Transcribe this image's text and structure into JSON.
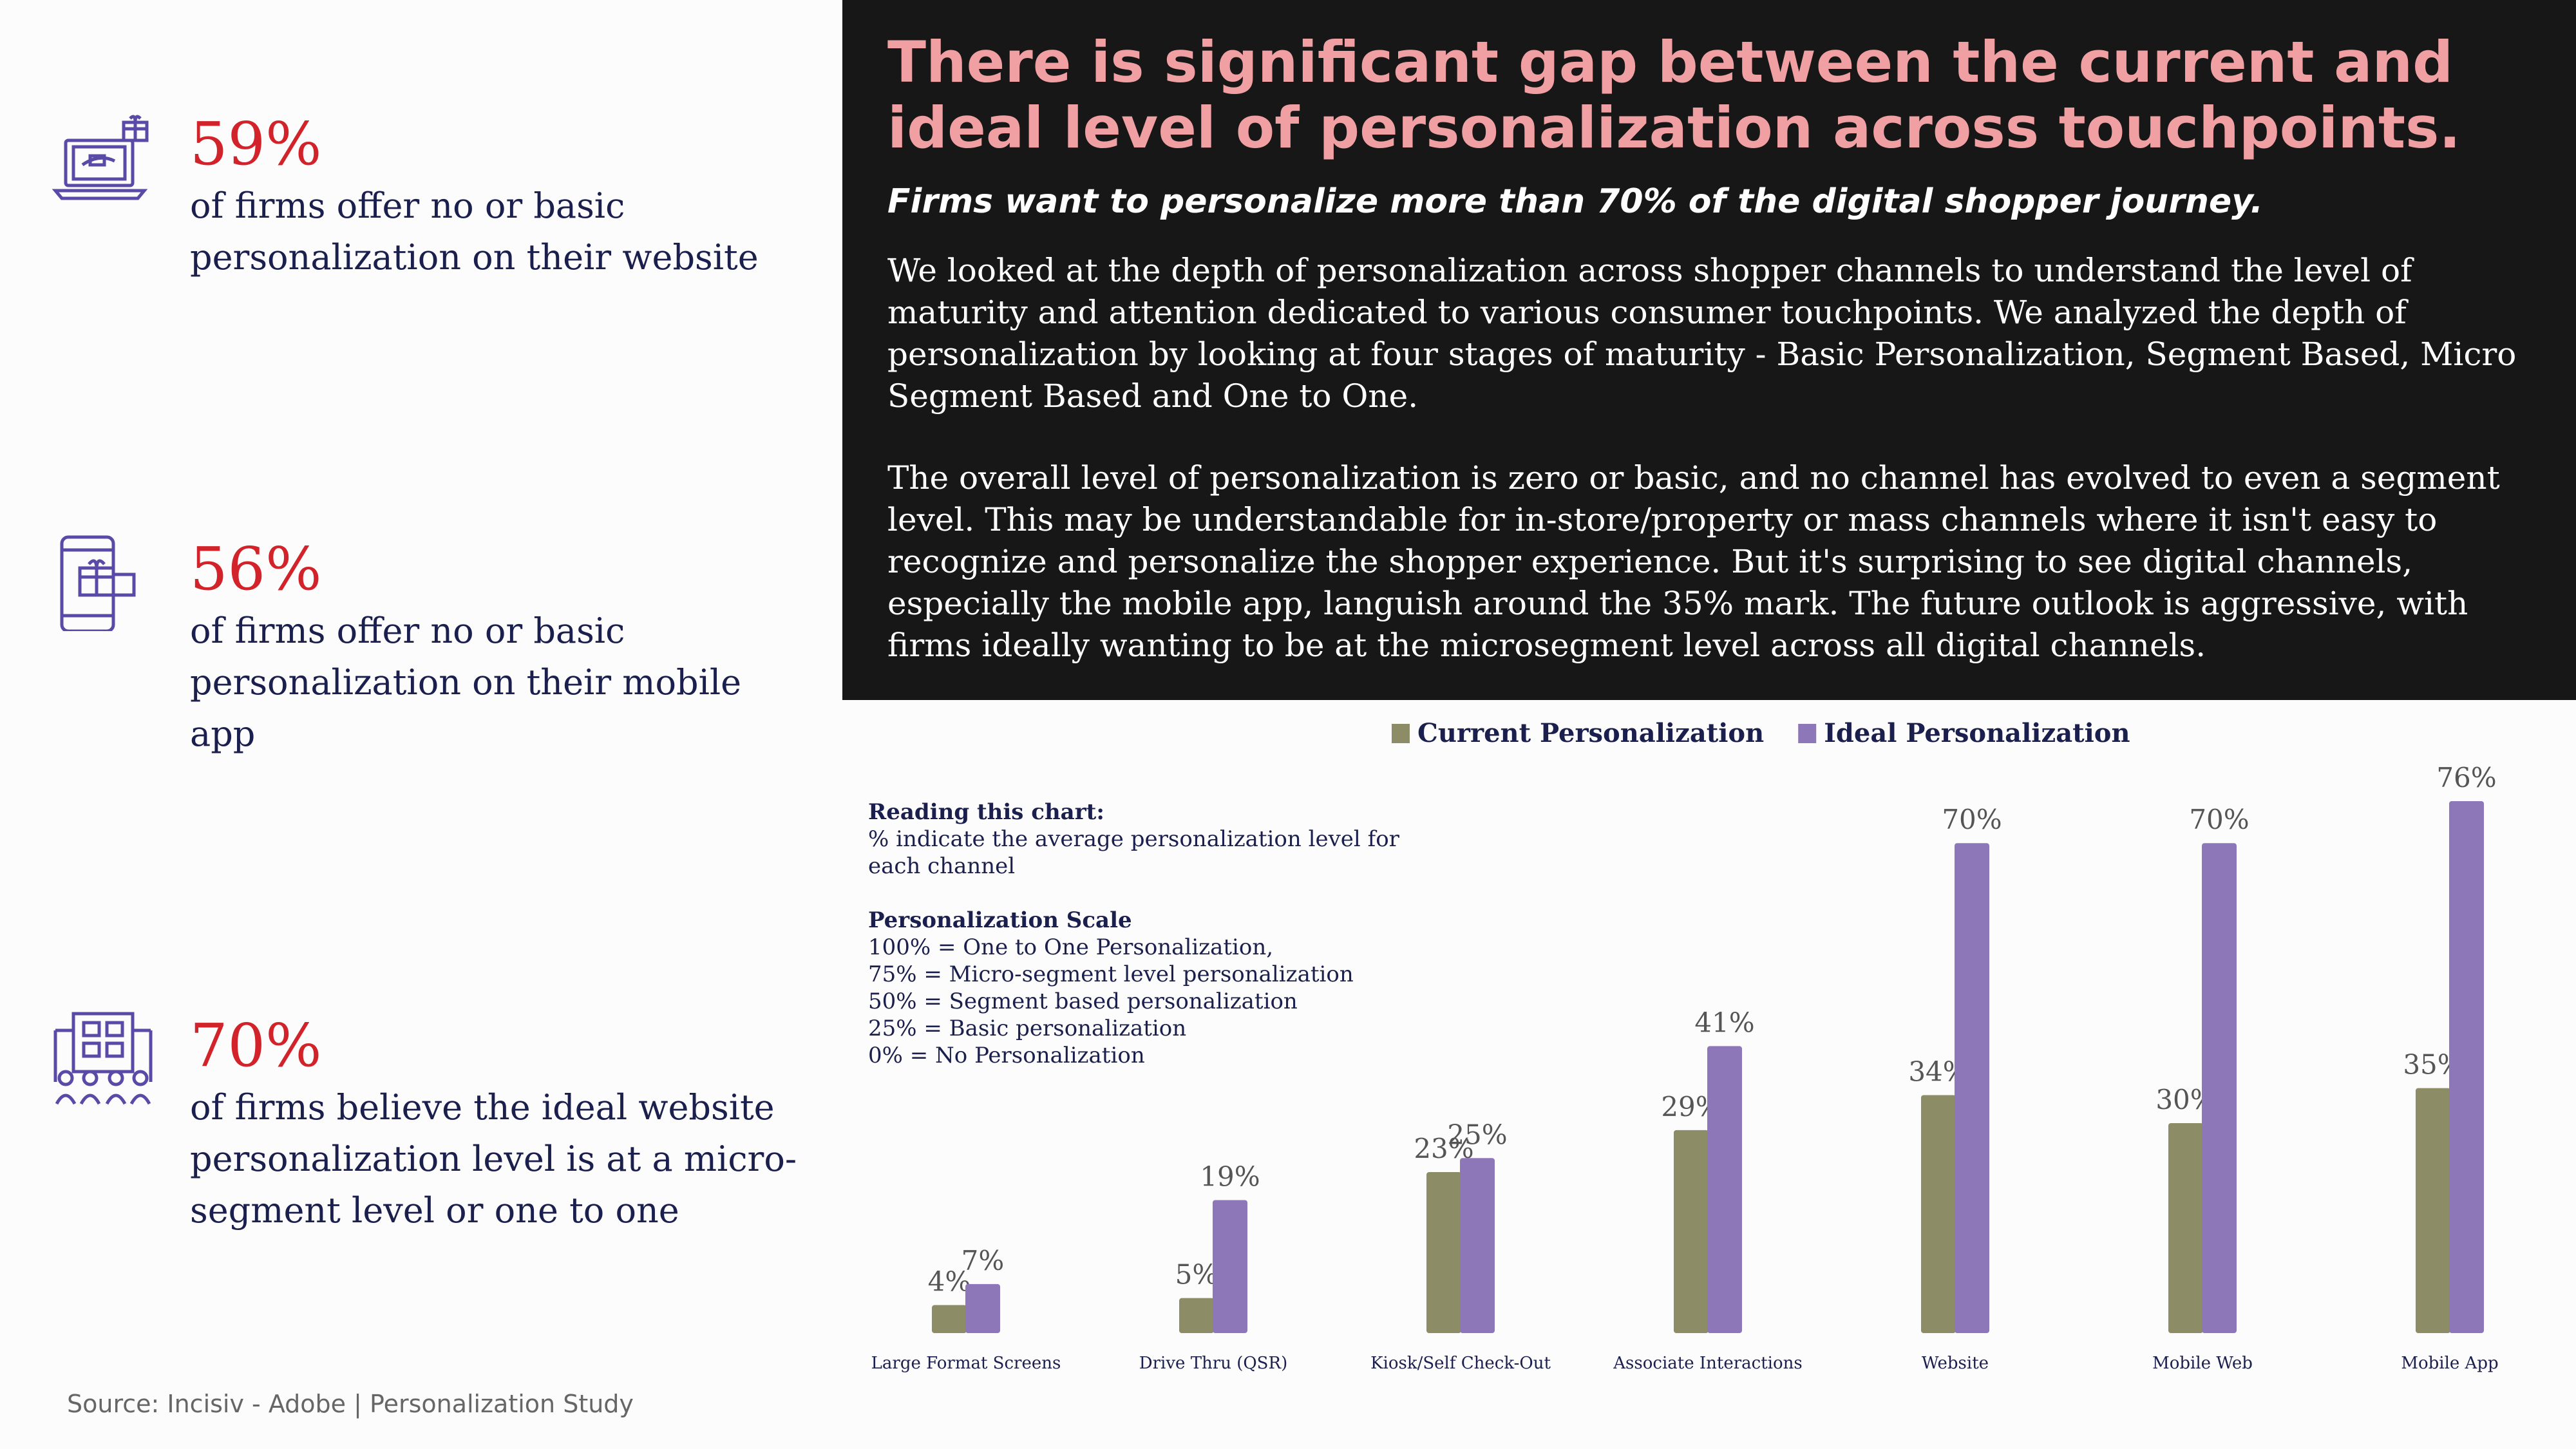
{
  "stats": [
    {
      "percent": "59%",
      "text": "of firms offer no or basic personalization on their website",
      "icon": "laptop-gift-icon"
    },
    {
      "percent": "56%",
      "text": "of firms offer no or basic personalization on their mobile app",
      "icon": "mobile-gift-icon"
    },
    {
      "percent": "70%",
      "text": "of firms believe the ideal website personalization level is at a micro-segment level or one to one",
      "icon": "store-people-icon"
    }
  ],
  "source": "Source: Incisiv - Adobe | Personalization Study",
  "headline": "There is significant gap between the current and ideal level of personalization across touchpoints.",
  "subheadline": "Firms want to personalize more than 70% of the digital shopper journey.",
  "paragraph1": "We looked at the depth of personalization across shopper channels to understand the level of maturity and attention dedicated to various consumer touchpoints. We analyzed the depth of personalization by looking at four stages of maturity - Basic Personalization, Segment Based, Micro Segment Based and One to One.",
  "paragraph2": "The overall level of personalization is zero or basic, and no channel has evolved to even a segment level. This may be understandable for in-store/property or mass channels where it isn't easy to recognize and personalize the shopper experience. But it's surprising to see digital channels, especially the mobile app, languish around the 35% mark. The future outlook is aggressive, with firms ideally wanting to be at the microsegment level across all digital channels.",
  "reading_box": {
    "title": "Reading this chart:",
    "lines": [
      "%  indicate the average personalization level for",
      "each channel"
    ],
    "scale_title": "Personalization Scale",
    "scale_lines": [
      "100% = One to One Personalization,",
      "75% = Micro-segment level personalization",
      "50%  = Segment based personalization",
      "25% = Basic personalization",
      "0% = No Personalization"
    ]
  },
  "chart_data": {
    "type": "bar",
    "categories": [
      "Large Format Screens",
      "Drive Thru (QSR)",
      "Kiosk/Self Check-Out",
      "Associate Interactions",
      "Website",
      "Mobile Web",
      "Mobile App"
    ],
    "series": [
      {
        "name": "Current Personalization",
        "values": [
          4,
          5,
          23,
          29,
          34,
          30,
          35
        ],
        "labels": [
          "4%",
          "5%",
          "23%",
          "29%",
          "34%",
          "30%",
          "35%"
        ],
        "color": "#8c8c66"
      },
      {
        "name": "Ideal Personalization",
        "values": [
          7,
          19,
          25,
          41,
          70,
          70,
          76
        ],
        "labels": [
          "7%",
          "19%",
          "25%",
          "41%",
          "70%",
          "70%",
          "76%"
        ],
        "color": "#8e77b9"
      }
    ],
    "legend_position": "top-center",
    "grid": false,
    "ylim": [
      0,
      76
    ]
  }
}
